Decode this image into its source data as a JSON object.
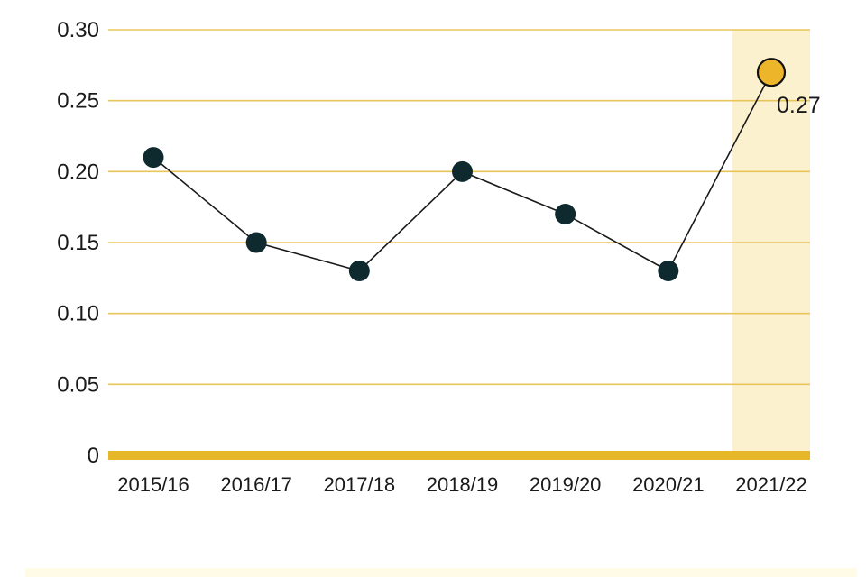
{
  "chart_data": {
    "type": "line",
    "title": "",
    "xlabel": "",
    "ylabel": "",
    "categories": [
      "2015/16",
      "2016/17",
      "2017/18",
      "2018/19",
      "2019/20",
      "2020/21",
      "2021/22"
    ],
    "values": [
      0.21,
      0.15,
      0.13,
      0.2,
      0.17,
      0.13,
      0.27
    ],
    "ylim": [
      0,
      0.3
    ],
    "yticks": [
      "0",
      "0.05",
      "0.10",
      "0.15",
      "0.20",
      "0.25",
      "0.30"
    ],
    "ytick_values": [
      0,
      0.05,
      0.1,
      0.15,
      0.2,
      0.25,
      0.3
    ],
    "grid": true,
    "highlight": {
      "category": "2021/22",
      "label": "0.27"
    },
    "colors": {
      "grid": "#e8c55a",
      "baseline": "#e6b829",
      "highlight_band": "#fbf1cf",
      "line": "#1a1a1a",
      "marker": "#0f2a2e",
      "highlight_marker": "#ecb52a",
      "bottom_band": "#fffbe6"
    }
  }
}
